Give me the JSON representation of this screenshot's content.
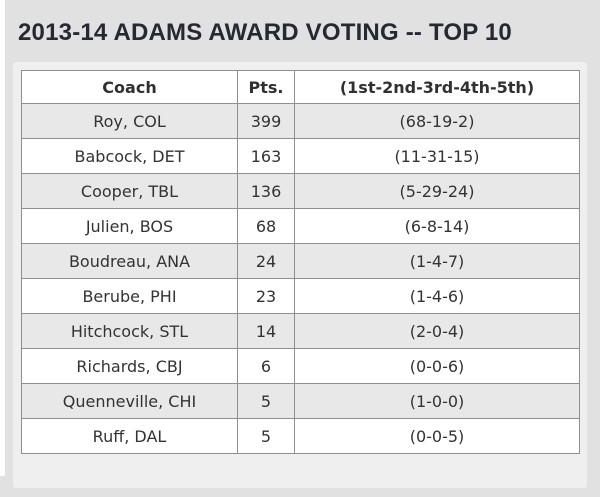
{
  "page": {
    "title": "2013-14 ADAMS AWARD VOTING -- TOP 10"
  },
  "table": {
    "columns": {
      "coach": "Coach",
      "pts": "Pts.",
      "votes": "(1st-2nd-3rd-4th-5th)"
    },
    "rows": [
      {
        "coach": "Roy, COL",
        "pts": "399",
        "votes": "(68-19-2)"
      },
      {
        "coach": "Babcock, DET",
        "pts": "163",
        "votes": "(11-31-15)"
      },
      {
        "coach": "Cooper, TBL",
        "pts": "136",
        "votes": "(5-29-24)"
      },
      {
        "coach": "Julien, BOS",
        "pts": "68",
        "votes": "(6-8-14)"
      },
      {
        "coach": "Boudreau, ANA",
        "pts": "24",
        "votes": "(1-4-7)"
      },
      {
        "coach": "Berube, PHI",
        "pts": "23",
        "votes": "(1-4-6)"
      },
      {
        "coach": "Hitchcock, STL",
        "pts": "14",
        "votes": "(2-0-4)"
      },
      {
        "coach": "Richards, CBJ",
        "pts": "6",
        "votes": "(0-0-6)"
      },
      {
        "coach": "Quenneville, CHI",
        "pts": "5",
        "votes": "(1-0-0)"
      },
      {
        "coach": "Ruff, DAL",
        "pts": "5",
        "votes": "(0-0-5)"
      }
    ]
  },
  "colors": {
    "page_background": "#e1e1e1",
    "panel_background": "#efefef",
    "row_alternate": "#e8e8e8",
    "row_plain": "#ffffff",
    "table_border": "#8f8f8f",
    "title_text": "#242932",
    "cell_text": "#333333"
  }
}
